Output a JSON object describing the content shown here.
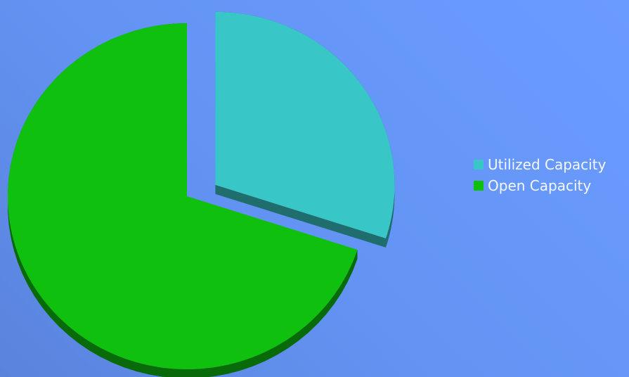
{
  "chart_data": {
    "type": "pie",
    "title": "",
    "slices": [
      {
        "label": "Utilized Capacity",
        "value": 30,
        "color": "#38c6c6",
        "exploded": true
      },
      {
        "label": "Open Capacity",
        "value": 70,
        "color": "#0fc00f",
        "exploded": false
      }
    ],
    "legend_position": "right",
    "style": "3d",
    "background": "#6494f4"
  }
}
